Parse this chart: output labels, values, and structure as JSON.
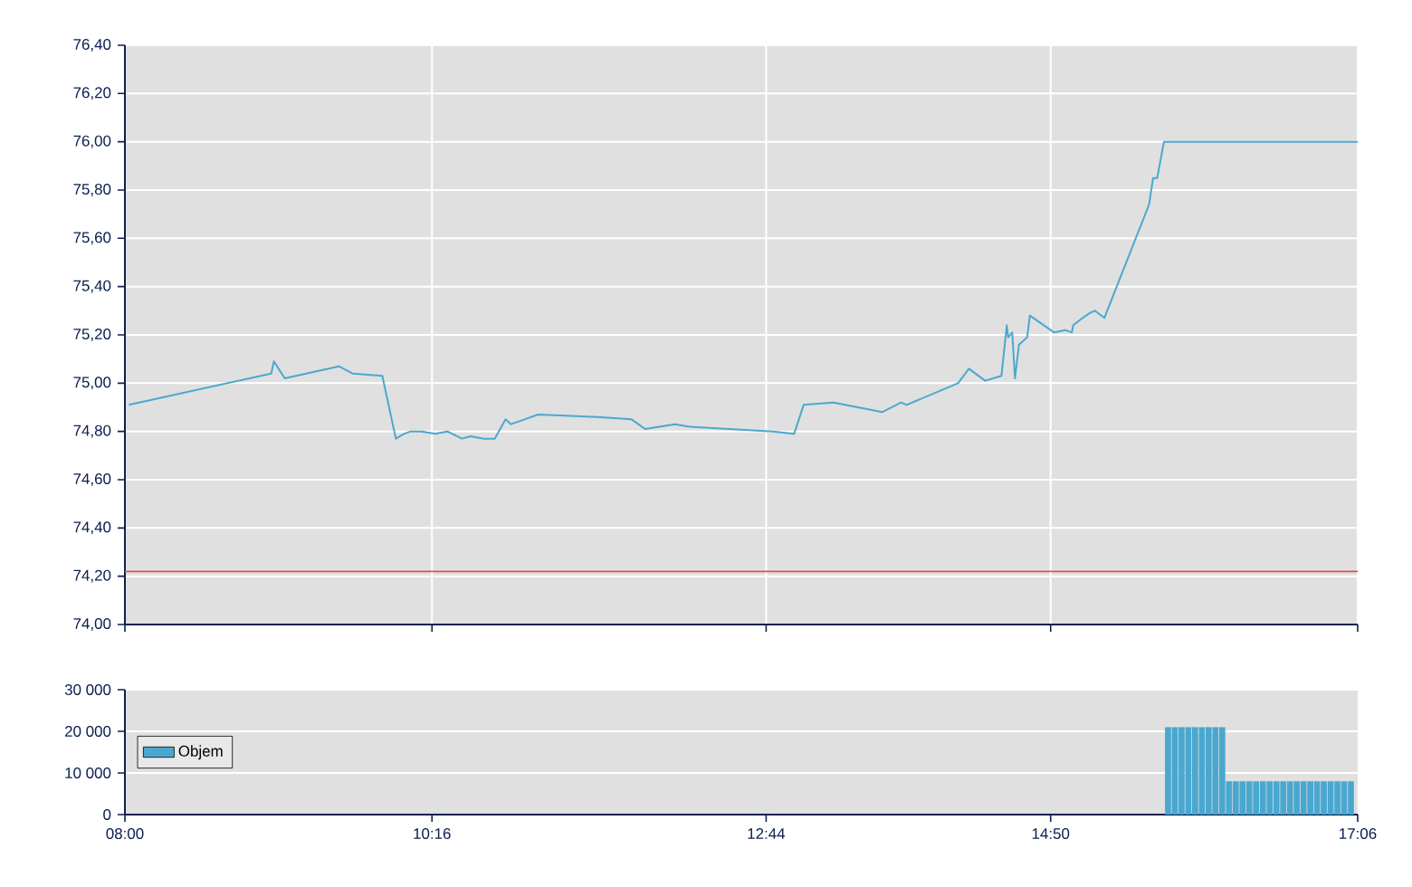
{
  "chart_data": [
    {
      "type": "line",
      "x": [
        8.03,
        9.08,
        9.1,
        9.18,
        9.58,
        9.68,
        9.9,
        10.0,
        10.06,
        10.11,
        10.19,
        10.29,
        10.38,
        10.49,
        10.55,
        10.65,
        10.73,
        10.81,
        10.85,
        10.95,
        11.05,
        11.49,
        11.74,
        11.84,
        12.06,
        12.16,
        12.78,
        12.94,
        13.01,
        13.23,
        13.59,
        13.73,
        13.77,
        14.15,
        14.23,
        14.35,
        14.47,
        14.51,
        14.52,
        14.55,
        14.57,
        14.6,
        14.66,
        14.68,
        14.86,
        14.94,
        14.99,
        15.0,
        15.07,
        15.12,
        15.16,
        15.23,
        15.56,
        15.59,
        15.62,
        15.67,
        17.1
      ],
      "values": [
        74.91,
        75.04,
        75.09,
        75.02,
        75.07,
        75.04,
        75.03,
        74.77,
        74.79,
        74.8,
        74.8,
        74.79,
        74.8,
        74.77,
        74.78,
        74.77,
        74.77,
        74.85,
        74.83,
        74.85,
        74.87,
        74.86,
        74.85,
        74.81,
        74.83,
        74.82,
        74.8,
        74.79,
        74.91,
        74.92,
        74.88,
        74.92,
        74.91,
        75.0,
        75.06,
        75.01,
        75.03,
        75.24,
        75.19,
        75.21,
        75.02,
        75.16,
        75.19,
        75.28,
        75.21,
        75.22,
        75.21,
        75.24,
        75.27,
        75.29,
        75.3,
        75.27,
        75.74,
        75.85,
        75.85,
        76.0,
        76.0
      ],
      "color": "#4aa8d0",
      "xlim": [
        8,
        17.1
      ],
      "xticks": [
        {
          "value": 8,
          "label": null
        },
        {
          "value": 10.2667,
          "label": null
        },
        {
          "value": 12.7333,
          "label": null
        },
        {
          "value": 14.8333,
          "label": null
        },
        {
          "value": 17.1,
          "label": null
        }
      ],
      "ylim": [
        74.0,
        76.4
      ],
      "yticks": [
        {
          "value": 74.0,
          "label": "74,00"
        },
        {
          "value": 74.2,
          "label": "74,20"
        },
        {
          "value": 74.4,
          "label": "74,40"
        },
        {
          "value": 74.6,
          "label": "74,60"
        },
        {
          "value": 74.8,
          "label": "74,80"
        },
        {
          "value": 75.0,
          "label": "75,00"
        },
        {
          "value": 75.2,
          "label": "75,20"
        },
        {
          "value": 75.4,
          "label": "75,40"
        },
        {
          "value": 75.6,
          "label": "75,60"
        },
        {
          "value": 75.8,
          "label": "75,80"
        },
        {
          "value": 76.0,
          "label": "76,00"
        },
        {
          "value": 76.2,
          "label": "76,20"
        },
        {
          "value": 76.4,
          "label": "76,40"
        }
      ],
      "grid": true,
      "tick_labels": "y",
      "ref_lines": [
        {
          "axis": "y",
          "value": 74.22,
          "color": "#e05050"
        }
      ]
    },
    {
      "type": "bar",
      "x": [
        15.7,
        15.75,
        15.8,
        15.85,
        15.9,
        15.95,
        16.0,
        16.05,
        16.1,
        16.15,
        16.2,
        16.25,
        16.3,
        16.35,
        16.4,
        16.45,
        16.5,
        16.55,
        16.6,
        16.65,
        16.7,
        16.75,
        16.8,
        16.85,
        16.9,
        16.95,
        17.0,
        17.05
      ],
      "series": [
        {
          "name": "Objem",
          "color": "#4aa8d0",
          "values": [
            21000,
            21000,
            21000,
            21000,
            21000,
            21000,
            21000,
            21000,
            21000,
            8000,
            8000,
            8000,
            8000,
            8000,
            8000,
            8000,
            8000,
            8000,
            8000,
            8000,
            8000,
            8000,
            8000,
            8000,
            8000,
            8000,
            8000,
            8000
          ]
        }
      ],
      "xlim": [
        8,
        17.1
      ],
      "xticks": [
        {
          "value": 8,
          "label": "08:00"
        },
        {
          "value": 10.2667,
          "label": "10:16"
        },
        {
          "value": 12.7333,
          "label": "12:44"
        },
        {
          "value": 14.8333,
          "label": "14:50"
        },
        {
          "value": 17.1,
          "label": "17:06"
        }
      ],
      "ylim": [
        0,
        30000
      ],
      "yticks": [
        0,
        {
          "value": 10000,
          "label": "10 000"
        },
        {
          "value": 20000,
          "label": "20 000"
        },
        {
          "value": 30000,
          "label": "30 000"
        }
      ],
      "grid": "y",
      "legend": "left"
    }
  ]
}
